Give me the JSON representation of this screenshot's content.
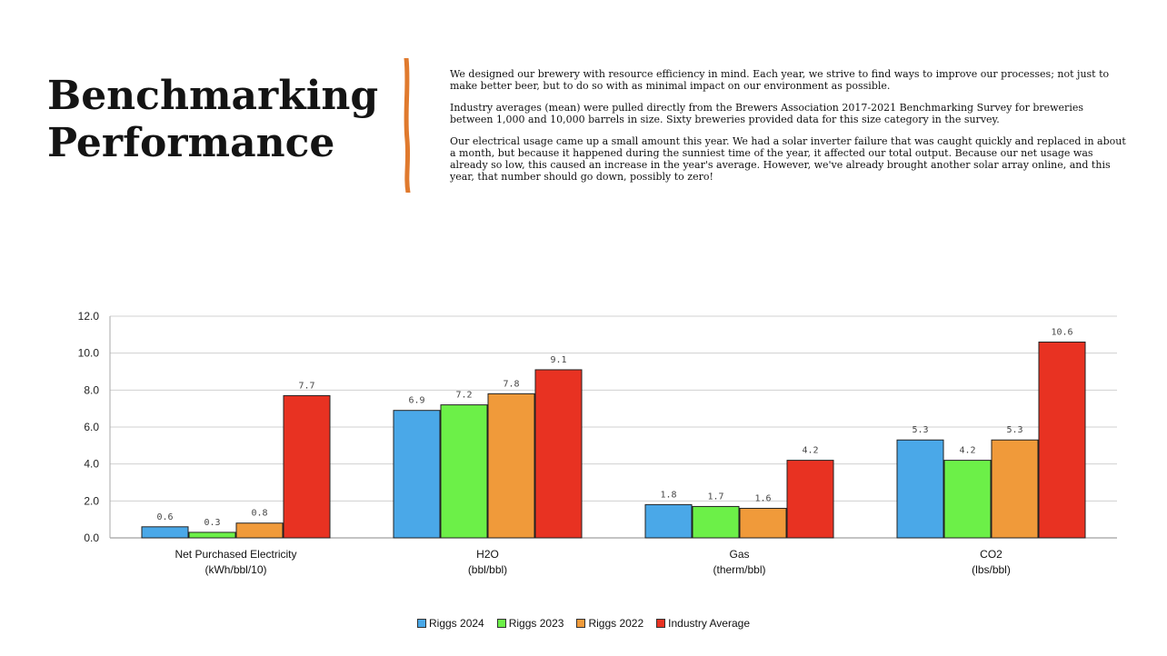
{
  "heading": {
    "line1": "Benchmarking",
    "line2": "Performance"
  },
  "accent_color": "#e07a2e",
  "paragraphs": [
    "We designed our brewery with resource efficiency in mind. Each year, we strive to find ways to improve our processes; not just to make better beer, but to do so with as minimal impact on our environment as possible.",
    "Industry averages (mean) were pulled directly from the Brewers Association 2017-2021 Benchmarking Survey for breweries between 1,000 and 10,000 barrels in size. Sixty breweries provided data for this size category in the survey.",
    "Our electrical usage came up a small amount this year. We had a solar inverter failure that was caught quickly and replaced in about a month, but because it happened during the sunniest time of the year, it affected our total output. Because our net usage was already so low, this caused an increase in the year's average. However, we've already brought another solar array online, and this year, that number should go down, possibly to zero!"
  ],
  "chart_data": {
    "type": "bar",
    "categories": [
      [
        "Net Purchased Electricity",
        "(kWh/bbl/10)"
      ],
      [
        "H2O",
        "(bbl/bbl)"
      ],
      [
        "Gas",
        "(therm/bbl)"
      ],
      [
        "CO2",
        "(lbs/bbl)"
      ]
    ],
    "series": [
      {
        "name": "Riggs 2024",
        "color": "#4aa8e8",
        "values": [
          0.6,
          6.9,
          1.8,
          5.3
        ]
      },
      {
        "name": "Riggs 2023",
        "color": "#6cf048",
        "values": [
          0.3,
          7.2,
          1.7,
          4.2
        ]
      },
      {
        "name": "Riggs 2022",
        "color": "#f09a3a",
        "values": [
          0.8,
          7.8,
          1.6,
          5.3
        ]
      },
      {
        "name": "Industry Average",
        "color": "#e83222",
        "values": [
          7.7,
          9.1,
          4.2,
          10.6
        ]
      }
    ],
    "data_labels": [
      [
        "0.6",
        "6.9",
        "1.8",
        "5.3"
      ],
      [
        "0.3",
        "7.2",
        "1.7",
        "4.2"
      ],
      [
        "0.8",
        "7.8",
        "1.6",
        "5.3"
      ],
      [
        "7.7",
        "9.1",
        "4.2",
        "10.6"
      ]
    ],
    "yticks": [
      "0.0",
      "2.0",
      "4.0",
      "6.0",
      "8.0",
      "10.0",
      "12.0"
    ],
    "ylim": [
      0,
      12
    ],
    "grid": true,
    "legend": "bottom-center",
    "title": "",
    "xlabel": "",
    "ylabel": ""
  }
}
